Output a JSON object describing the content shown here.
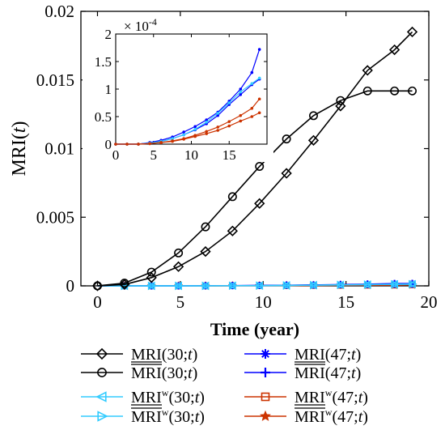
{
  "chart_data": [
    {
      "type": "line",
      "ylabel": "MRI(t)",
      "xlabel": "Time (year)",
      "xlim": [
        -1,
        20
      ],
      "ylim": [
        0,
        0.02
      ],
      "xticks": [
        "0",
        "5",
        "10",
        "15",
        "20"
      ],
      "yticks": [
        "0",
        "0.005",
        "0.01",
        "0.015",
        "0.02"
      ],
      "x": [
        0,
        1.63,
        3.26,
        4.89,
        6.52,
        8.15,
        9.78,
        11.41,
        13.04,
        14.67,
        16.3,
        17.93,
        19.0
      ],
      "series": [
        {
          "name": "MRI̲(30;t)",
          "marker": "diamond",
          "color": "#000000",
          "values": [
            0,
            0.0001,
            0.0006,
            0.0014,
            0.0025,
            0.004,
            0.006,
            0.0082,
            0.0106,
            0.0131,
            0.0157,
            0.0172,
            0.0185
          ]
        },
        {
          "name": "MRI̅(30;t)",
          "marker": "circle",
          "color": "#000000",
          "values": [
            0,
            0.0002,
            0.001,
            0.0024,
            0.0043,
            0.0065,
            0.0087,
            0.0107,
            0.0124,
            0.0135,
            0.0142,
            0.0142,
            0.0142
          ]
        },
        {
          "name": "MRI̲ʷ(30;t)",
          "marker": "triangle-left",
          "color": "#33ccff",
          "values": [
            0,
            0,
            0,
            0,
            0,
            1e-05,
            2e-05,
            3e-05,
            5e-05,
            7e-05,
            9e-05,
            0.00011,
            0.00012
          ]
        },
        {
          "name": "MRI̅ʷ(30;t)",
          "marker": "triangle-right",
          "color": "#33ccff",
          "values": [
            0,
            0,
            0,
            0,
            0,
            1e-05,
            2e-05,
            3e-05,
            5e-05,
            7e-05,
            9e-05,
            0.00011,
            0.00012
          ]
        },
        {
          "name": "MRI̲(47;t)",
          "marker": "asterisk",
          "color": "#0000ff",
          "values": [
            0,
            0,
            0,
            0,
            1e-05,
            2e-05,
            3e-05,
            5e-05,
            7e-05,
            0.0001,
            0.00013,
            0.00017,
            0.000175
          ]
        },
        {
          "name": "MRI̅(47;t)",
          "marker": "plus",
          "color": "#0000ff",
          "values": [
            0,
            0,
            0,
            0,
            1e-05,
            2e-05,
            3e-05,
            5e-05,
            6e-05,
            8e-05,
            0.0001,
            0.00011,
            0.00012
          ]
        },
        {
          "name": "MRI̲ʷ(47;t)",
          "marker": "square",
          "color": "#cc3300",
          "values": [
            0,
            0,
            0,
            0,
            0,
            1e-05,
            2e-05,
            2e-05,
            3e-05,
            4e-05,
            5e-05,
            6e-05,
            8e-05
          ]
        },
        {
          "name": "MRI̅ʷ(47;t)",
          "marker": "star",
          "color": "#cc3300",
          "values": [
            0,
            0,
            0,
            0,
            0,
            1e-05,
            1e-05,
            2e-05,
            3e-05,
            4e-05,
            5e-05,
            5e-05,
            6e-05
          ]
        }
      ]
    },
    {
      "type": "line",
      "inset": true,
      "multiplier_label": "× 10",
      "multiplier_exponent": "-4",
      "xlim": [
        0,
        20
      ],
      "ylim": [
        0,
        2
      ],
      "xticks": [
        "0",
        "5",
        "10",
        "15"
      ],
      "yticks": [
        "0",
        "0.5",
        "1",
        "1.5",
        "2"
      ],
      "x": [
        0,
        1.5,
        3,
        4.5,
        6,
        7.5,
        9,
        10.5,
        12,
        13.5,
        15,
        16.5,
        18,
        19
      ],
      "series": [
        {
          "name": "MRI̲(47;t)",
          "color": "#0000ff",
          "values": [
            0,
            0,
            0,
            0.03,
            0.07,
            0.13,
            0.22,
            0.32,
            0.44,
            0.58,
            0.78,
            1.0,
            1.3,
            1.72
          ]
        },
        {
          "name": "MRI̅(47;t)",
          "color": "#0000ff",
          "values": [
            0,
            0,
            0,
            0.02,
            0.05,
            0.1,
            0.17,
            0.26,
            0.37,
            0.52,
            0.72,
            0.9,
            1.08,
            1.18
          ]
        },
        {
          "name": "MRI̲ʷ(30;t)",
          "color": "#33ccff",
          "values": [
            0,
            0,
            0,
            0.02,
            0.05,
            0.1,
            0.17,
            0.27,
            0.4,
            0.56,
            0.75,
            0.95,
            1.1,
            1.2
          ]
        },
        {
          "name": "MRI̲ʷ(47;t)",
          "color": "#cc3300",
          "values": [
            0,
            0,
            0,
            0.01,
            0.03,
            0.06,
            0.1,
            0.16,
            0.23,
            0.31,
            0.41,
            0.52,
            0.65,
            0.82
          ]
        },
        {
          "name": "MRI̅ʷ(47;t)",
          "color": "#cc3300",
          "values": [
            0,
            0,
            0,
            0.01,
            0.03,
            0.05,
            0.09,
            0.14,
            0.19,
            0.25,
            0.33,
            0.42,
            0.5,
            0.57
          ]
        }
      ]
    }
  ],
  "legend": [
    {
      "base": "MRI",
      "bar": "under",
      "sup": "",
      "args": "(30;",
      "t": "t",
      "close": ")",
      "marker": "diamond",
      "color": "#000000"
    },
    {
      "base": "MRI",
      "bar": "over",
      "sup": "",
      "args": "(30;",
      "t": "t",
      "close": ")",
      "marker": "circle",
      "color": "#000000"
    },
    {
      "base": "MRI",
      "bar": "under",
      "sup": "w",
      "args": "(30;",
      "t": "t",
      "close": ")",
      "marker": "triangle-left",
      "color": "#33ccff"
    },
    {
      "base": "MRI",
      "bar": "over",
      "sup": "w",
      "args": "(30;",
      "t": "t",
      "close": ")",
      "marker": "triangle-right",
      "color": "#33ccff"
    },
    {
      "base": "MRI",
      "bar": "under",
      "sup": "",
      "args": "(47;",
      "t": "t",
      "close": ")",
      "marker": "asterisk",
      "color": "#0000ff"
    },
    {
      "base": "MRI",
      "bar": "over",
      "sup": "",
      "args": "(47;",
      "t": "t",
      "close": ")",
      "marker": "plus",
      "color": "#0000ff"
    },
    {
      "base": "MRI",
      "bar": "under",
      "sup": "w",
      "args": "(47;",
      "t": "t",
      "close": ")",
      "marker": "square",
      "color": "#cc3300"
    },
    {
      "base": "MRI",
      "bar": "over",
      "sup": "w",
      "args": "(47;",
      "t": "t",
      "close": ")",
      "marker": "star",
      "color": "#cc3300"
    }
  ]
}
